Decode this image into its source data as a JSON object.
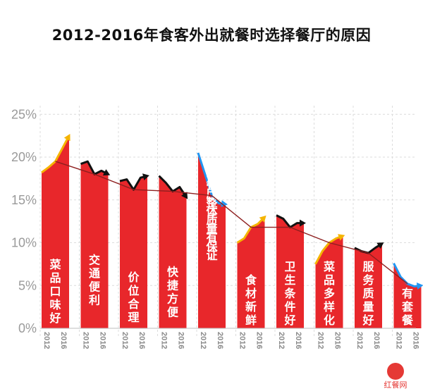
{
  "chart_data": {
    "type": "bar",
    "title": "2012-2016年食客外出就餐时选择餐厅的原因",
    "xlabel": "",
    "ylabel": "",
    "ylim": [
      0,
      27
    ],
    "yticks": [
      "0%",
      "5%",
      "10%",
      "15%",
      "20%",
      "25%"
    ],
    "ytick_values": [
      0,
      5,
      10,
      15,
      20,
      25
    ],
    "year_labels": [
      "2012",
      "2016"
    ],
    "categories": [
      "菜品口味好",
      "交通便利",
      "价位合理",
      "快捷方便",
      "连锁餐厅整体质量有保证",
      "食材新鲜",
      "卫生条件好",
      "菜品多样化",
      "服务质量好",
      "有套餐"
    ],
    "series": [
      {
        "values": [
          [
            18.2,
            18.8,
            19.5,
            21.0,
            22.5
          ],
          [
            19.2,
            19.5,
            18.0,
            18.4,
            18.0
          ],
          [
            17.2,
            17.4,
            16.2,
            17.6,
            17.8
          ],
          [
            17.8,
            17.0,
            16.0,
            16.5,
            15.3
          ],
          [
            20.5,
            18.0,
            15.5,
            14.6,
            14.5
          ],
          [
            10.0,
            10.5,
            11.8,
            12.2,
            13.0
          ],
          [
            13.2,
            12.8,
            11.8,
            12.3,
            12.3
          ],
          [
            7.5,
            9.0,
            10.0,
            10.5,
            10.8
          ],
          [
            9.4,
            9.0,
            8.8,
            9.4,
            9.9
          ],
          [
            7.6,
            6.0,
            5.2,
            4.9,
            5.0
          ]
        ]
      }
    ],
    "trend_colors": [
      "#f5b400",
      "#111111",
      "#111111",
      "#111111",
      "#2196f3",
      "#f5b400",
      "#111111",
      "#f5b400",
      "#111111",
      "#2196f3"
    ],
    "colors": {
      "bar": "#e8272b",
      "trend_line": "#8e1f1f",
      "grid": "#dcdcdc"
    },
    "grid": true,
    "legend": "none"
  },
  "watermark": {
    "text": "红餐网"
  }
}
